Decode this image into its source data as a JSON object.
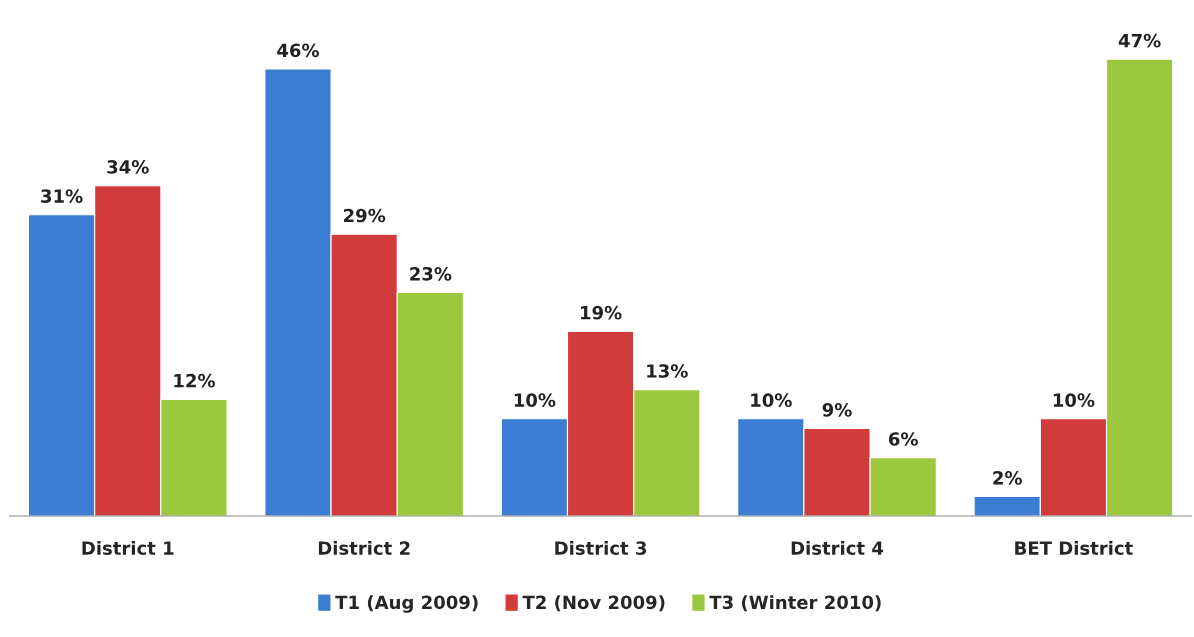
{
  "chart_data": {
    "type": "bar",
    "categories": [
      "District 1",
      "District 2",
      "District 3",
      "District 4",
      "BET District"
    ],
    "series": [
      {
        "name": "T1 (Aug 2009)",
        "color": "#3b7dd3",
        "values": [
          31,
          46,
          10,
          10,
          2
        ],
        "value_labels": [
          "31%",
          "46%",
          "10%",
          "10%",
          "2%"
        ]
      },
      {
        "name": "T2 (Nov 2009)",
        "color": "#d23b3b",
        "values": [
          34,
          29,
          19,
          9,
          10
        ],
        "value_labels": [
          "34%",
          "29%",
          "19%",
          "9%",
          "10%"
        ]
      },
      {
        "name": "T3 (Winter 2010)",
        "color": "#9cc83e",
        "values": [
          12,
          23,
          13,
          6,
          47
        ],
        "value_labels": [
          "12%",
          "23%",
          "13%",
          "6%",
          "47%"
        ]
      }
    ],
    "legend": "bottom"
  }
}
